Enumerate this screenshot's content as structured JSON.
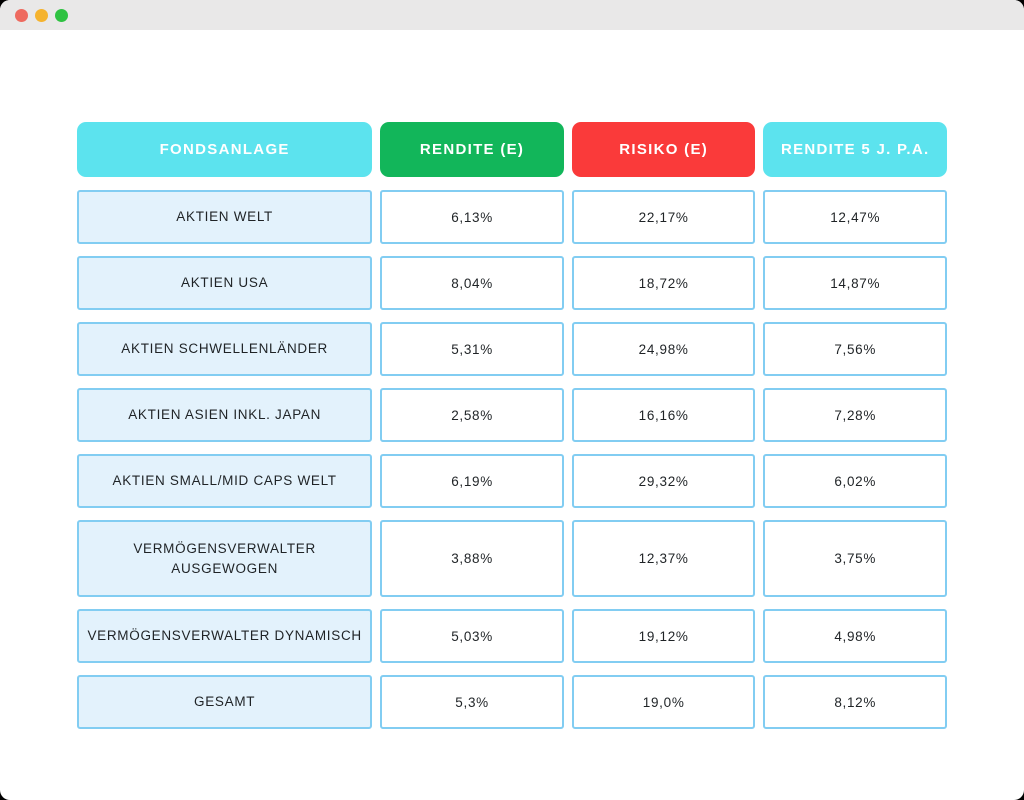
{
  "window": {
    "titlebar": {
      "buttons": [
        {
          "name": "close"
        },
        {
          "name": "minimize"
        },
        {
          "name": "zoom"
        }
      ],
      "background": "#e9e8e8"
    },
    "background": "#ffffff",
    "page_background": "#000000"
  },
  "colors": {
    "header_cyan": "#5ce3ee",
    "header_green": "#12b65a",
    "header_red": "#fa3a3a",
    "cell_border": "#82cdf2",
    "label_cell_bg": "#e3f2fc",
    "traffic_red": "#ee6a5f",
    "traffic_yellow": "#f5b32e",
    "traffic_green": "#2fc242"
  },
  "table": {
    "columns": [
      {
        "label": "FONDSANLAGE",
        "color": "#5ce3ee"
      },
      {
        "label": "RENDITE (E)",
        "color": "#12b65a"
      },
      {
        "label": "RISIKO (E)",
        "color": "#fa3a3a"
      },
      {
        "label": "RENDITE 5 J. P.A.",
        "color": "#5ce3ee"
      }
    ],
    "rows": [
      {
        "label": "AKTIEN WELT",
        "values": [
          "6,13%",
          "22,17%",
          "12,47%"
        ]
      },
      {
        "label": "AKTIEN USA",
        "values": [
          "8,04%",
          "18,72%",
          "14,87%"
        ]
      },
      {
        "label": "AKTIEN SCHWELLENLÄNDER",
        "values": [
          "5,31%",
          "24,98%",
          "7,56%"
        ]
      },
      {
        "label": "AKTIEN ASIEN INKL. JAPAN",
        "values": [
          "2,58%",
          "16,16%",
          "7,28%"
        ]
      },
      {
        "label": "AKTIEN SMALL/MID CAPS WELT",
        "values": [
          "6,19%",
          "29,32%",
          "6,02%"
        ]
      },
      {
        "label": "VERMÖGENSVERWALTER\nAUSGEWOGEN",
        "values": [
          "3,88%",
          "12,37%",
          "3,75%"
        ]
      },
      {
        "label": "VERMÖGENSVERWALTER DYNAMISCH",
        "values": [
          "5,03%",
          "19,12%",
          "4,98%"
        ]
      },
      {
        "label": "GESAMT",
        "values": [
          "5,3%",
          "19,0%",
          "8,12%"
        ]
      }
    ]
  },
  "chart_data": {
    "type": "table",
    "title": "",
    "columns": [
      "FONDSANLAGE",
      "RENDITE (E)",
      "RISIKO (E)",
      "RENDITE 5 J. P.A."
    ],
    "rows": [
      [
        "AKTIEN WELT",
        "6,13%",
        "22,17%",
        "12,47%"
      ],
      [
        "AKTIEN USA",
        "8,04%",
        "18,72%",
        "14,87%"
      ],
      [
        "AKTIEN SCHWELLENLÄNDER",
        "5,31%",
        "24,98%",
        "7,56%"
      ],
      [
        "AKTIEN ASIEN INKL. JAPAN",
        "2,58%",
        "16,16%",
        "7,28%"
      ],
      [
        "AKTIEN SMALL/MID CAPS WELT",
        "6,19%",
        "29,32%",
        "6,02%"
      ],
      [
        "VERMÖGENSVERWALTER AUSGEWOGEN",
        "3,88%",
        "12,37%",
        "3,75%"
      ],
      [
        "VERMÖGENSVERWALTER DYNAMISCH",
        "5,03%",
        "19,12%",
        "4,98%"
      ],
      [
        "GESAMT",
        "5,3%",
        "19,0%",
        "8,12%"
      ]
    ]
  }
}
